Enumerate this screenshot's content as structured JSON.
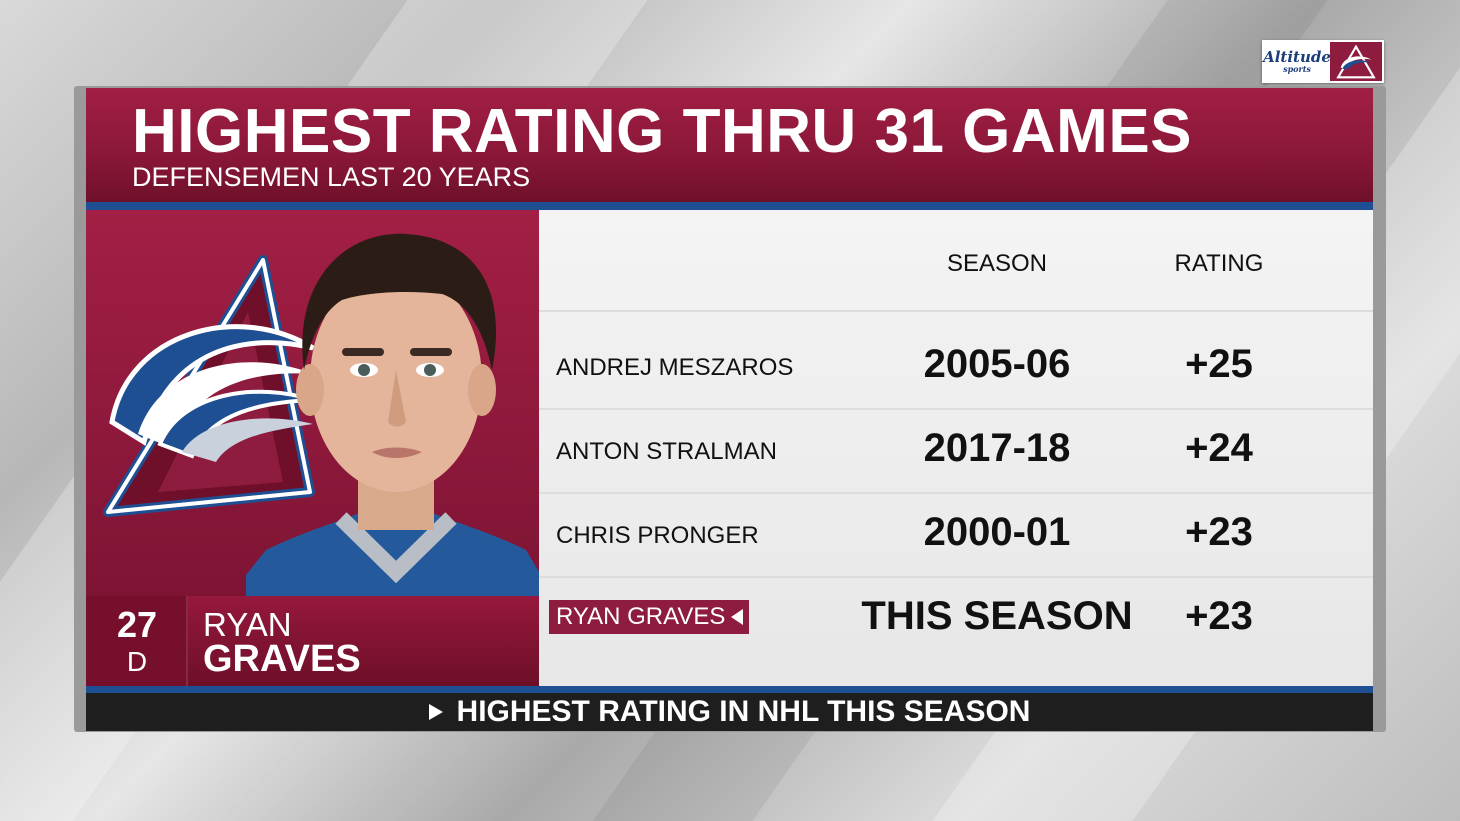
{
  "colors": {
    "primary_burgundy": "#8e1c3e",
    "accent_blue": "#1f4f93",
    "footer_black": "#1e1e1e",
    "table_bg": "#eeeeee"
  },
  "bug": {
    "network_word": "Altitude",
    "network_sub": "sports",
    "team_logo_icon": "avalanche-logo-icon"
  },
  "header": {
    "title": "HIGHEST RATING THRU 31 GAMES",
    "subtitle": "DEFENSEMEN LAST 20 YEARS"
  },
  "player": {
    "number": "27",
    "position": "D",
    "first_name": "RYAN",
    "last_name": "GRAVES",
    "headshot_icon": "player-headshot-icon",
    "team_logo_icon": "avalanche-logo-icon"
  },
  "table": {
    "columns": {
      "season": "SEASON",
      "rating": "RATING"
    },
    "rows": [
      {
        "name": "ANDREJ MESZAROS",
        "season": "2005-06",
        "rating": "+25"
      },
      {
        "name": "ANTON STRALMAN",
        "season": "2017-18",
        "rating": "+24"
      },
      {
        "name": "CHRIS PRONGER",
        "season": "2000-01",
        "rating": "+23"
      },
      {
        "name": "RYAN GRAVES",
        "season": "THIS SEASON",
        "rating": "+23",
        "highlighted": true
      }
    ]
  },
  "footer": {
    "text": "HIGHEST RATING IN NHL THIS SEASON",
    "icon": "play-triangle-icon"
  }
}
